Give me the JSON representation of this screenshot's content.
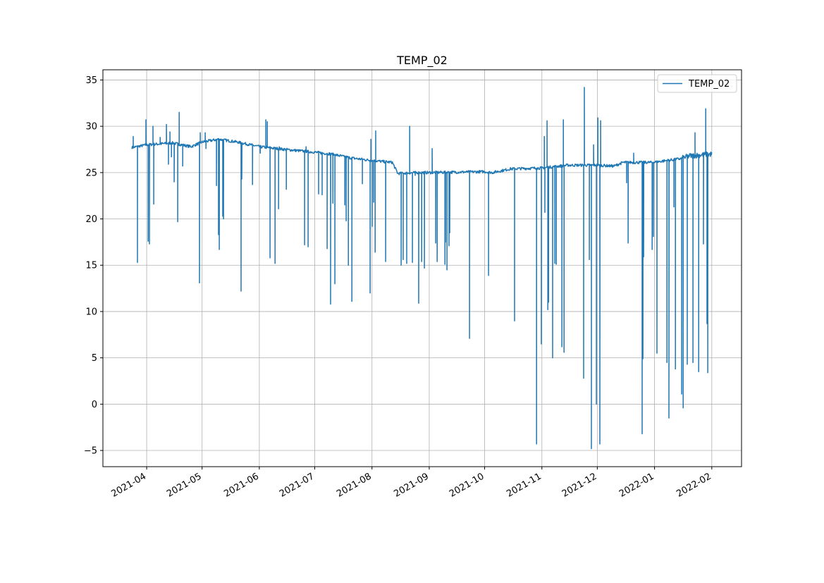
{
  "chart_data": {
    "type": "line",
    "title": "TEMP_02",
    "xlabel": "",
    "ylabel": "",
    "x_unit": "days since 2021-04-01",
    "xlim": [
      -23.7,
      322.1
    ],
    "ylim": [
      -6.75,
      36.1
    ],
    "grid": true,
    "legend": {
      "placement": "top-right",
      "entries": [
        "TEMP_02"
      ]
    },
    "series_color": "#1f77b4",
    "x_ticks": [
      {
        "label": "2021-04",
        "day": 0
      },
      {
        "label": "2021-05",
        "day": 30
      },
      {
        "label": "2021-06",
        "day": 61
      },
      {
        "label": "2021-07",
        "day": 91
      },
      {
        "label": "2021-08",
        "day": 122
      },
      {
        "label": "2021-09",
        "day": 153
      },
      {
        "label": "2021-10",
        "day": 183
      },
      {
        "label": "2021-11",
        "day": 214
      },
      {
        "label": "2021-12",
        "day": 244
      },
      {
        "label": "2022-01",
        "day": 275
      },
      {
        "label": "2022-02",
        "day": 306
      }
    ],
    "y_ticks": [
      35,
      30,
      25,
      20,
      15,
      10,
      5,
      0,
      -5
    ],
    "y_tick_labels": [
      "35",
      "30",
      "25",
      "20",
      "15",
      "10",
      "5",
      "0",
      "−5"
    ],
    "baseline": [
      [
        -8,
        27.7
      ],
      [
        0,
        28.0
      ],
      [
        14,
        28.2
      ],
      [
        24,
        27.8
      ],
      [
        30,
        28.3
      ],
      [
        39,
        28.6
      ],
      [
        49,
        28.3
      ],
      [
        61,
        27.8
      ],
      [
        75,
        27.5
      ],
      [
        91,
        27.2
      ],
      [
        100,
        27.0
      ],
      [
        110,
        26.6
      ],
      [
        122,
        26.3
      ],
      [
        133,
        26.1
      ],
      [
        136,
        24.9
      ],
      [
        146,
        25.0
      ],
      [
        153,
        25.0
      ],
      [
        183,
        25.1
      ],
      [
        187,
        25.0
      ],
      [
        197,
        25.4
      ],
      [
        214,
        25.5
      ],
      [
        228,
        25.8
      ],
      [
        244,
        25.8
      ],
      [
        253,
        25.7
      ],
      [
        258,
        26.1
      ],
      [
        274,
        26.1
      ],
      [
        289,
        26.5
      ],
      [
        294,
        26.8
      ],
      [
        306,
        27.0
      ]
    ],
    "spikes": [
      [
        -7.3,
        28.9
      ],
      [
        -5,
        15.3
      ],
      [
        -0.4,
        30.7
      ],
      [
        0.8,
        17.6
      ],
      [
        1.5,
        17.3
      ],
      [
        3.4,
        30.0
      ],
      [
        3.8,
        21.6
      ],
      [
        7.3,
        28.8
      ],
      [
        10.7,
        30.2
      ],
      [
        11.8,
        25.9
      ],
      [
        12.6,
        29.4
      ],
      [
        13.4,
        26.7
      ],
      [
        14.9,
        24.0
      ],
      [
        16.8,
        19.7
      ],
      [
        17.6,
        31.5
      ],
      [
        19.5,
        25.7
      ],
      [
        28.6,
        13.1
      ],
      [
        29.0,
        29.3
      ],
      [
        31.7,
        29.3
      ],
      [
        32.1,
        27.6
      ],
      [
        37.8,
        23.6
      ],
      [
        38.9,
        18.3
      ],
      [
        39.3,
        16.7
      ],
      [
        40.1,
        28.5
      ],
      [
        41.2,
        20.3
      ],
      [
        41.6,
        20.0
      ],
      [
        51.1,
        12.2
      ],
      [
        51.5,
        24.3
      ],
      [
        57.3,
        23.7
      ],
      [
        61.5,
        27.1
      ],
      [
        64.5,
        30.7
      ],
      [
        65.3,
        30.5
      ],
      [
        66.8,
        15.8
      ],
      [
        69.5,
        15.2
      ],
      [
        71.4,
        21.1
      ],
      [
        71.8,
        27.8
      ],
      [
        75.6,
        23.2
      ],
      [
        85.5,
        17.2
      ],
      [
        86.3,
        27.8
      ],
      [
        87.4,
        17.0
      ],
      [
        93.1,
        22.7
      ],
      [
        95.0,
        22.6
      ],
      [
        97.7,
        16.8
      ],
      [
        99.6,
        10.8
      ],
      [
        100.8,
        21.7
      ],
      [
        101.9,
        13.0
      ],
      [
        107.3,
        21.5
      ],
      [
        108.0,
        19.8
      ],
      [
        109.2,
        15.0
      ],
      [
        109.9,
        26.5
      ],
      [
        111.1,
        11.1
      ],
      [
        116.8,
        23.8
      ],
      [
        121.0,
        12.0
      ],
      [
        121.4,
        28.6
      ],
      [
        122.1,
        19.2
      ],
      [
        122.9,
        21.8
      ],
      [
        123.7,
        16.4
      ],
      [
        124.0,
        29.5
      ],
      [
        129.4,
        15.4
      ],
      [
        137.8,
        15.0
      ],
      [
        138.9,
        15.6
      ],
      [
        140.8,
        15.2
      ],
      [
        142.4,
        30.0
      ],
      [
        143.9,
        15.3
      ],
      [
        145.4,
        24.7
      ],
      [
        147.3,
        10.9
      ],
      [
        148.9,
        15.4
      ],
      [
        150.4,
        14.7
      ],
      [
        154.6,
        27.6
      ],
      [
        156.5,
        17.4
      ],
      [
        157.3,
        15.4
      ],
      [
        161.5,
        15.1
      ],
      [
        161.8,
        17.5
      ],
      [
        162.6,
        14.5
      ],
      [
        163.7,
        17.1
      ],
      [
        164.1,
        18.5
      ],
      [
        174.8,
        7.1
      ],
      [
        185.1,
        13.9
      ],
      [
        199.2,
        9.0
      ],
      [
        211.1,
        -4.3
      ],
      [
        213.7,
        6.5
      ],
      [
        215.3,
        28.9
      ],
      [
        215.6,
        20.7
      ],
      [
        216.8,
        30.6
      ],
      [
        217.2,
        10.2
      ],
      [
        217.6,
        11.0
      ],
      [
        219.8,
        5.0
      ],
      [
        221.0,
        15.2
      ],
      [
        221.8,
        15.1
      ],
      [
        224.8,
        6.2
      ],
      [
        225.6,
        30.7
      ],
      [
        226.0,
        5.6
      ],
      [
        236.6,
        2.8
      ],
      [
        237.0,
        34.2
      ],
      [
        239.7,
        15.6
      ],
      [
        240.8,
        -4.8
      ],
      [
        242.0,
        28.0
      ],
      [
        243.5,
        0.0
      ],
      [
        244.3,
        30.9
      ],
      [
        245.4,
        -4.3
      ],
      [
        245.8,
        30.6
      ],
      [
        259.9,
        23.9
      ],
      [
        260.7,
        17.4
      ],
      [
        263.7,
        27.1
      ],
      [
        268.3,
        -3.2
      ],
      [
        268.7,
        4.9
      ],
      [
        269.1,
        15.9
      ],
      [
        273.7,
        16.7
      ],
      [
        274.4,
        18.1
      ],
      [
        276.3,
        5.5
      ],
      [
        281.7,
        4.5
      ],
      [
        282.8,
        -1.5
      ],
      [
        285.5,
        21.3
      ],
      [
        286.3,
        3.8
      ],
      [
        289.7,
        1.1
      ],
      [
        290.5,
        -0.4
      ],
      [
        292.7,
        4.3
      ],
      [
        295.8,
        4.5
      ],
      [
        296.9,
        29.3
      ],
      [
        298.9,
        3.5
      ],
      [
        301.5,
        17.3
      ],
      [
        302.7,
        31.9
      ],
      [
        303.4,
        8.7
      ],
      [
        303.8,
        3.4
      ]
    ]
  }
}
